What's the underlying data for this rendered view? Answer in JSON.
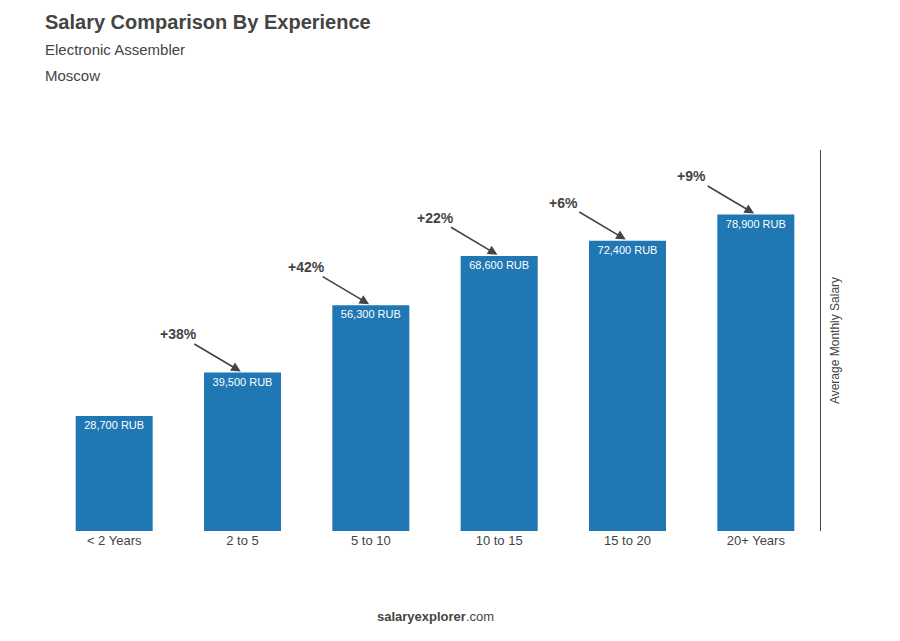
{
  "chart_data": {
    "type": "bar",
    "title": "Salary Comparison By Experience",
    "subtitle": "Electronic Assembler",
    "city": "Moscow",
    "categories": [
      "< 2 Years",
      "2 to 5",
      "5 to 10",
      "10 to 15",
      "15 to 20",
      "20+ Years"
    ],
    "values": [
      28700,
      39500,
      56300,
      68600,
      72400,
      78900
    ],
    "value_labels": [
      "28,700 RUB",
      "39,500 RUB",
      "56,300 RUB",
      "68,600 RUB",
      "72,400 RUB",
      "78,900 RUB"
    ],
    "data_labels": true,
    "pct_changes": [
      null,
      "+38%",
      "+42%",
      "+22%",
      "+6%",
      "+9%"
    ],
    "ylabel": "Average Monthly Salary",
    "ylim": [
      0,
      95000
    ],
    "tick_labels": "x",
    "grid": false,
    "watermark": [
      "salary",
      "explorer",
      ".com"
    ]
  }
}
